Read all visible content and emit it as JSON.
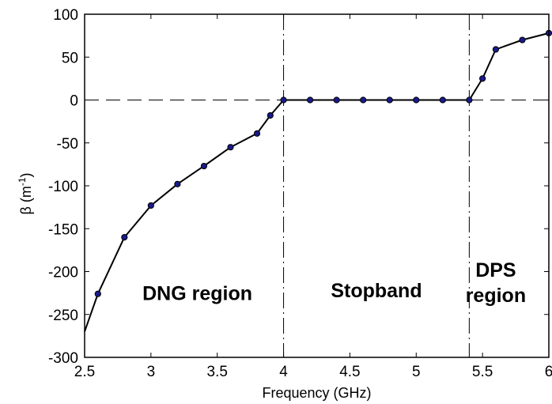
{
  "chart_data": {
    "type": "line",
    "xlabel": "Frequency (GHz)",
    "ylabel_main": "β (m",
    "ylabel_sup": "-1",
    "ylabel_close": ")",
    "xlim": [
      2.5,
      6
    ],
    "ylim": [
      -300,
      100
    ],
    "xticks": [
      2.5,
      3,
      3.5,
      4,
      4.5,
      5,
      5.5,
      6
    ],
    "xtick_labels": [
      "2.5",
      "3",
      "3.5",
      "4",
      "4.5",
      "5",
      "5.5",
      "6"
    ],
    "yticks": [
      100,
      50,
      0,
      -50,
      -100,
      -150,
      -200,
      -250,
      -300
    ],
    "ytick_labels": [
      "100",
      "50",
      "0",
      "-50",
      "-100",
      "-150",
      "-200",
      "-250",
      "-300"
    ],
    "grid": false,
    "series": [
      {
        "x": [
          2.5,
          2.6,
          2.8,
          3.0,
          3.2,
          3.4,
          3.6,
          3.8,
          3.9,
          4.0,
          4.2,
          4.4,
          4.6,
          4.8,
          5.0,
          5.2,
          5.4,
          5.5,
          5.6,
          5.8,
          6.0
        ],
        "y": [
          -270,
          -226,
          -160,
          -123,
          -98,
          -77,
          -55,
          -39,
          -18,
          0,
          0,
          0,
          0,
          0,
          0,
          0,
          0,
          25,
          59,
          70,
          78
        ],
        "marker_from_index": 1,
        "line_color": "#000000",
        "marker_color": "#1a1a8c"
      }
    ],
    "reference_lines": [
      {
        "orientation": "horizontal",
        "value": 0,
        "style": "dashed"
      },
      {
        "orientation": "vertical",
        "value": 4.0,
        "style": "dashdot"
      },
      {
        "orientation": "vertical",
        "value": 5.4,
        "style": "dashdot"
      }
    ],
    "annotations": [
      {
        "lines": [
          "DNG region"
        ],
        "x": 3.35,
        "y": -233
      },
      {
        "lines": [
          "Stopband"
        ],
        "x": 4.7,
        "y": -230
      },
      {
        "lines": [
          "DPS",
          "region"
        ],
        "x": 5.6,
        "y": -206
      }
    ]
  }
}
